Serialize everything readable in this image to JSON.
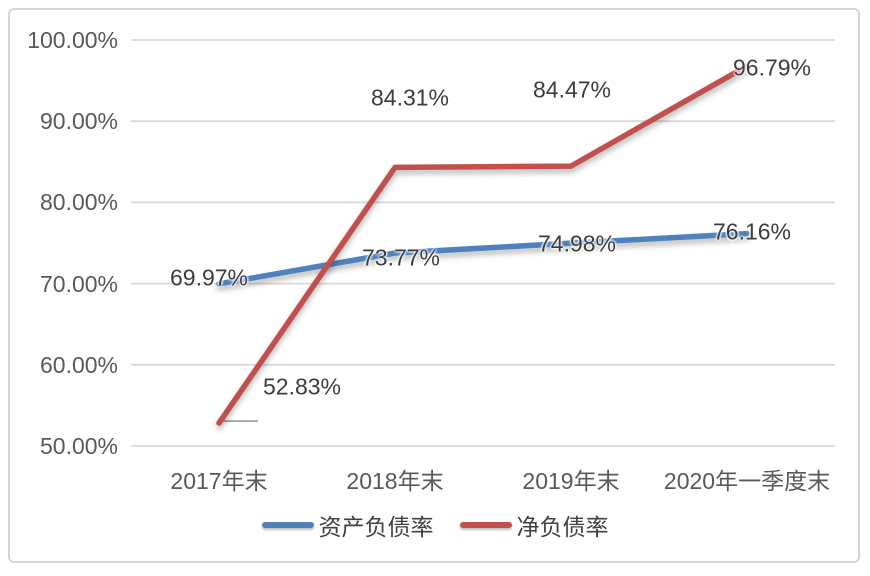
{
  "chart_data": {
    "type": "line",
    "title": "",
    "categories": [
      "2017年末",
      "2018年末",
      "2019年末",
      "2020年一季度末"
    ],
    "series": [
      {
        "name": "资产负债率",
        "color": "#4F81BD",
        "values": [
          69.97,
          73.77,
          74.98,
          76.16
        ],
        "point_labels": [
          "69.97%",
          "73.77%",
          "74.98%",
          "76.16%"
        ]
      },
      {
        "name": "净负债率",
        "color": "#C0504D",
        "values": [
          52.83,
          84.31,
          84.47,
          96.79
        ],
        "point_labels": [
          "52.83%",
          "84.31%",
          "84.47%",
          "96.79%"
        ]
      }
    ],
    "ylim": [
      50,
      100
    ],
    "yticks": [
      {
        "value": 50,
        "label": "50.00%"
      },
      {
        "value": 60,
        "label": "60.00%"
      },
      {
        "value": 70,
        "label": "70.00%"
      },
      {
        "value": 80,
        "label": "80.00%"
      },
      {
        "value": 90,
        "label": "90.00%"
      },
      {
        "value": 100,
        "label": "100.00%"
      }
    ],
    "grid": true,
    "legend_position": "bottom"
  },
  "styles": {
    "background": "#ffffff",
    "border_color": "#d6d6d6",
    "grid_color": "#d9d9d9",
    "axis_label_color": "#595959",
    "data_label_color": "#3d3d3d",
    "leader_line_color": "#9a9a9a",
    "series_colors": [
      "#4F81BD",
      "#C0504D"
    ]
  }
}
